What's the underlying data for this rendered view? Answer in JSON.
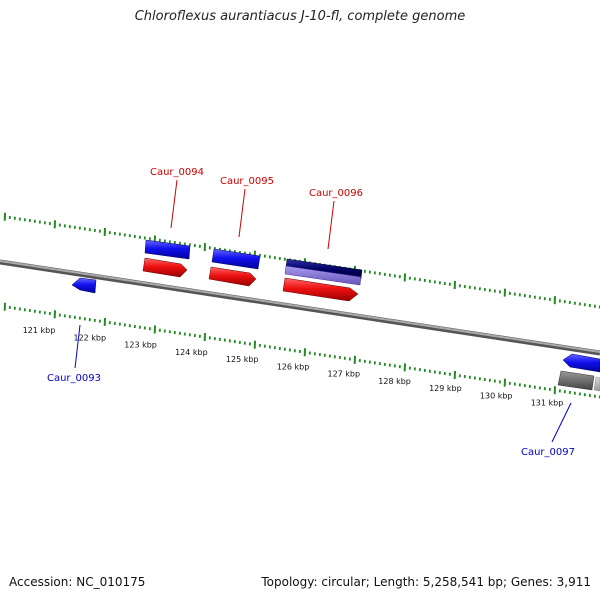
{
  "title": "Chloroflexus aurantiacus J-10-fl, complete genome",
  "footer": {
    "accession": "Accession: NC_010175",
    "summary": "Topology: circular; Length: 5,258,541 bp; Genes: 3,911"
  },
  "scale": {
    "ticks": [
      "121 kbp",
      "122 kbp",
      "123 kbp",
      "124 kbp",
      "125 kbp",
      "126 kbp",
      "127 kbp",
      "128 kbp",
      "129 kbp",
      "130 kbp",
      "131 kbp"
    ]
  },
  "genes": [
    {
      "label": "Caur_0093",
      "strand": "reverse",
      "color": "#0000cc"
    },
    {
      "label": "Caur_0094",
      "strand": "forward",
      "color": "#cc0000"
    },
    {
      "label": "Caur_0095",
      "strand": "forward",
      "color": "#cc0000"
    },
    {
      "label": "Caur_0096",
      "strand": "forward",
      "color": "#cc0000"
    },
    {
      "label": "Caur_0097",
      "strand": "reverse",
      "color": "#0000cc"
    }
  ],
  "colors": {
    "forward_cds": "#ee1111",
    "reverse_cds": "#1111ee",
    "dark_cds": "#000066",
    "light_cds": "#8877dd",
    "backbone": "#808080",
    "ticks": "#228b22",
    "grey_feature": "#666666"
  }
}
